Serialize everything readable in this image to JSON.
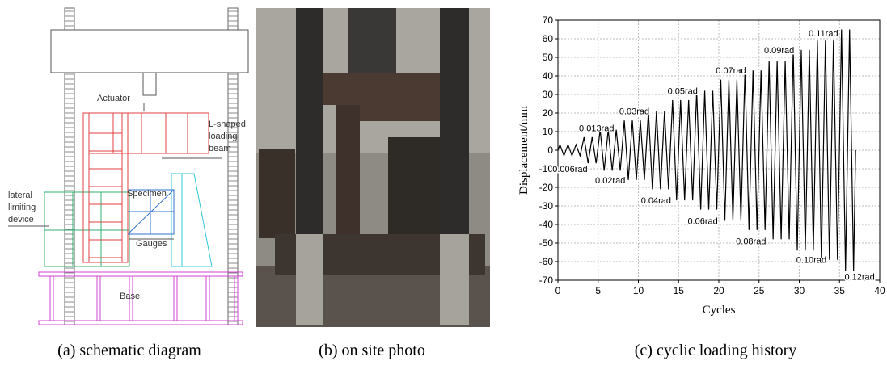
{
  "diagram": {
    "labels": {
      "actuator": "Actuator",
      "loading_beam": [
        "L-shaped",
        "loading",
        "beam"
      ],
      "specimen": "Specimen",
      "lateral_device": [
        "lateral",
        "limiting",
        "device"
      ],
      "gauges": "Gauges",
      "base": "Base"
    }
  },
  "captions": [
    "(a) schematic diagram",
    "(b) on site photo",
    "(c) cyclic loading history"
  ],
  "chart_data": {
    "type": "line",
    "x_label": "Cycles",
    "y_label": "Displacement/mm",
    "x": [
      0,
      0.25,
      0.75,
      1.25,
      1.75,
      2.25,
      2.75,
      3.25,
      3.75,
      4.25,
      4.75,
      5.25,
      5.75,
      6.25,
      6.75,
      7.25,
      7.75,
      8.25,
      8.75,
      9.25,
      9.75,
      10.25,
      10.75,
      11.25,
      11.75,
      12.25,
      12.75,
      13.25,
      13.75,
      14.25,
      14.75,
      15.25,
      15.75,
      16.25,
      16.75,
      17.25,
      17.75,
      18.25,
      18.75,
      19.25,
      19.75,
      20.25,
      20.75,
      21.25,
      21.75,
      22.25,
      22.75,
      23.25,
      23.75,
      24.25,
      24.75,
      25.25,
      25.75,
      26.25,
      26.75,
      27.25,
      27.75,
      28.25,
      28.75,
      29.25,
      29.75,
      30.25,
      30.75,
      31.25,
      31.75,
      32.25,
      32.75,
      33.25,
      33.75,
      34.25,
      34.75,
      35.25,
      35.75,
      36.25,
      36.75,
      37
    ],
    "series": [
      {
        "color": "#000000",
        "values": [
          0,
          3,
          -3,
          3,
          -3,
          3,
          -3,
          7,
          -7,
          7,
          -7,
          11,
          -11,
          11,
          -11,
          11,
          -11,
          16,
          -16,
          16,
          -16,
          16,
          -16,
          21,
          -21,
          21,
          -21,
          21,
          -21,
          27,
          -27,
          27,
          -27,
          27,
          -27,
          32,
          -32,
          32,
          -32,
          32,
          -32,
          38,
          -38,
          38,
          -38,
          38,
          -38,
          43,
          -43,
          43,
          -43,
          43,
          -43,
          48,
          -48,
          48,
          -48,
          48,
          -48,
          54,
          -54,
          54,
          -54,
          54,
          -54,
          59,
          -59,
          59,
          -59,
          59,
          -59,
          65,
          -65,
          65,
          -65,
          0
        ]
      }
    ],
    "annotations": [
      "0.006rad",
      "0.013rad",
      "0.02rad",
      "0.03rad",
      "0.04rad",
      "0.05rad",
      "0.06rad",
      "0.07rad",
      "0.08rad",
      "0.09rad",
      "0.10rad",
      "0.11rad",
      "0.12rad"
    ],
    "xlim": [
      0,
      40
    ],
    "ylim": [
      -70,
      70
    ],
    "xticks": [
      0,
      5,
      10,
      15,
      20,
      25,
      30,
      35,
      40
    ],
    "yticks": [
      -70,
      -60,
      -50,
      -40,
      -30,
      -20,
      -10,
      0,
      10,
      20,
      30,
      40,
      50,
      60,
      70
    ],
    "grid": true
  }
}
